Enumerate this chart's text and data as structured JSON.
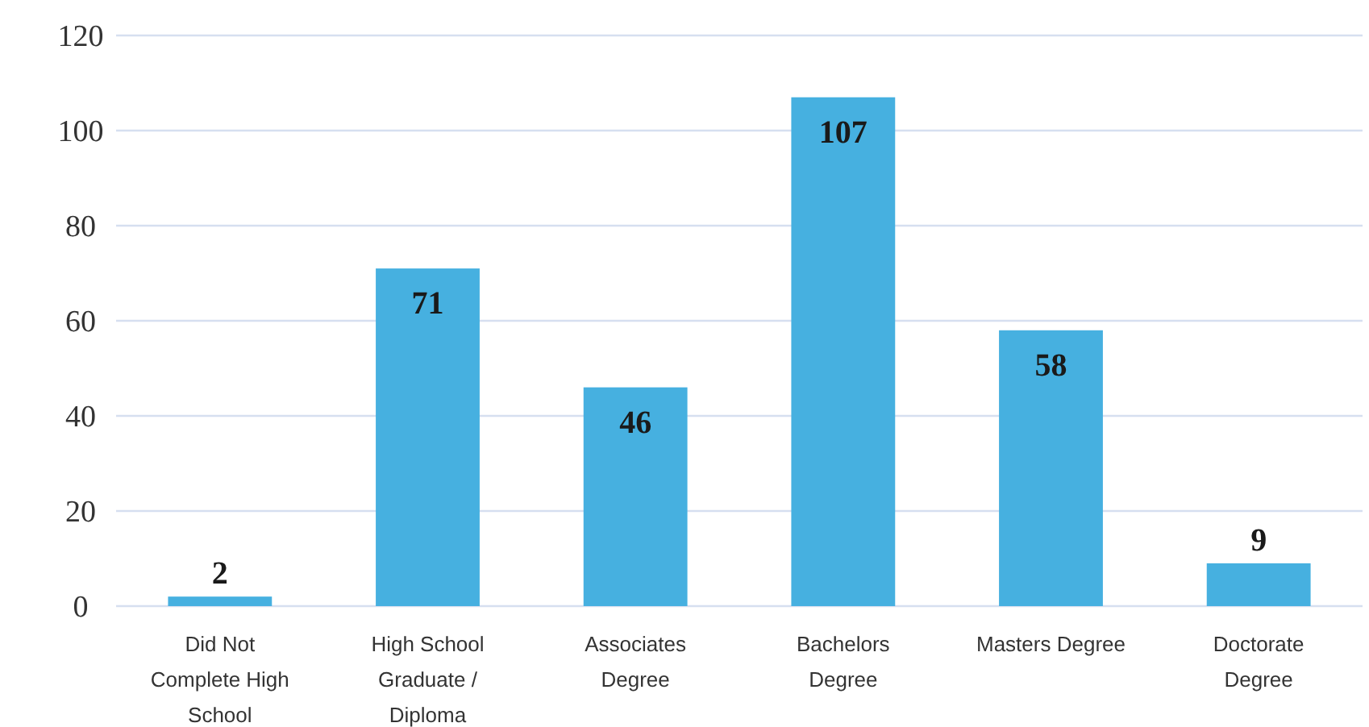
{
  "chart_data": {
    "type": "bar",
    "categories": [
      "Did Not Complete High School",
      "High School Graduate / Diploma",
      "Associates Degree",
      "Bachelors Degree",
      "Masters Degree",
      "Doctorate Degree"
    ],
    "values": [
      2,
      71,
      46,
      107,
      58,
      9
    ],
    "color": "#46b0e0",
    "ylim": [
      0,
      120
    ],
    "yticks": [
      0,
      20,
      40,
      60,
      80,
      100,
      120
    ],
    "grid": "y",
    "data_labels": true
  }
}
